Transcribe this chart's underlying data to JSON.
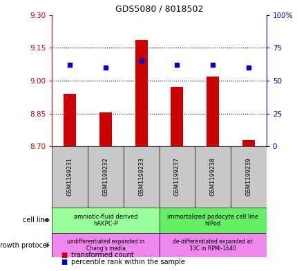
{
  "title": "GDS5080 / 8018502",
  "samples": [
    "GSM1199231",
    "GSM1199232",
    "GSM1199233",
    "GSM1199237",
    "GSM1199238",
    "GSM1199239"
  ],
  "transformed_counts": [
    8.94,
    8.855,
    9.185,
    8.97,
    9.02,
    8.73
  ],
  "percentile_ranks": [
    62,
    60,
    65,
    62,
    62,
    60
  ],
  "bar_baseline": 8.7,
  "left_ylim": [
    8.7,
    9.3
  ],
  "right_ylim": [
    0,
    100
  ],
  "left_yticks": [
    8.7,
    8.85,
    9.0,
    9.15,
    9.3
  ],
  "right_yticks": [
    0,
    25,
    50,
    75,
    100
  ],
  "right_yticklabels": [
    "0",
    "25",
    "50",
    "75",
    "100%"
  ],
  "left_color": "#cc0000",
  "right_color": "#0000cc",
  "bar_color": "#cc0000",
  "dot_color": "#0000cc",
  "grid_color": "#000000",
  "cell_line_groups": [
    {
      "label": "amniotic-fluid derived\nhAKPC-P",
      "start": 0,
      "end": 3,
      "color": "#99ff99"
    },
    {
      "label": "immortalized podocyte cell line\nhIPod",
      "start": 3,
      "end": 6,
      "color": "#66ee66"
    }
  ],
  "growth_protocol_groups": [
    {
      "label": "undifferentiated expanded in\nChang's media",
      "start": 0,
      "end": 3,
      "color": "#ee88ee"
    },
    {
      "label": "de-differentiated expanded at\n33C in RPMI-1640",
      "start": 3,
      "end": 6,
      "color": "#ee88ee"
    }
  ],
  "sample_col_color": "#c8c8c8",
  "legend_bar_label": "transformed count",
  "legend_dot_label": "percentile rank within the sample",
  "cell_line_label": "cell line",
  "growth_protocol_label": "growth protocol",
  "bar_width": 0.35
}
